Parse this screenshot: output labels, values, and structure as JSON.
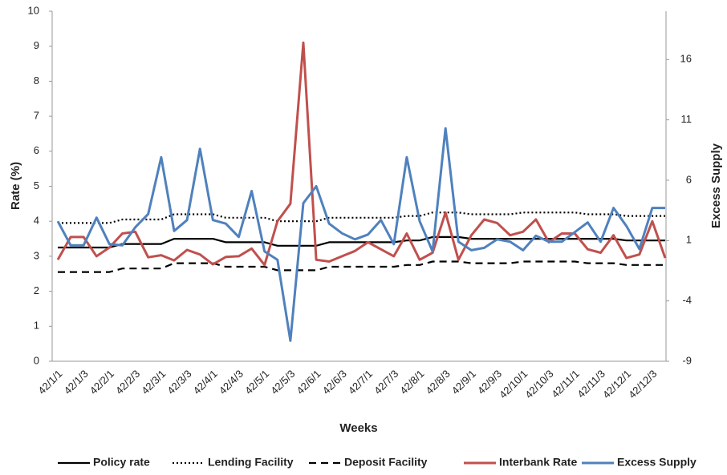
{
  "chart_data": {
    "type": "line",
    "ylabel": "Rate (%)",
    "y2label": "Excess Supply",
    "xlabel": "Weeks",
    "categories": [
      "42/1/1",
      null,
      "42/1/3",
      null,
      "42/2/1",
      null,
      "42/2/3",
      null,
      "42/3/1",
      null,
      "42/3/3",
      null,
      "42/4/1",
      null,
      "42/4/3",
      null,
      "42/5/1",
      null,
      "42/5/3",
      null,
      "42/6/1",
      null,
      "42/6/3",
      null,
      "42/7/1",
      null,
      "42/7/3",
      null,
      "42/8/1",
      null,
      "42/8/3",
      null,
      "42/9/1",
      null,
      "42/9/3",
      null,
      "42/10/1",
      null,
      "42/10/3",
      null,
      "42/11/1",
      null,
      "42/11/3",
      null,
      "42/12/1",
      null,
      "42/12/3",
      null
    ],
    "ylim": [
      0,
      10
    ],
    "yticks": [
      0,
      1,
      2,
      3,
      4,
      5,
      6,
      7,
      8,
      9,
      10
    ],
    "y2lim": [
      -9,
      20
    ],
    "y2ticks": [
      -9,
      -4,
      1,
      6,
      11,
      16
    ],
    "grid": false,
    "series": [
      {
        "name": "Policy rate",
        "color": "#000000",
        "dash": "solid",
        "values": [
          3.25,
          3.25,
          3.25,
          3.25,
          3.25,
          3.35,
          3.35,
          3.35,
          3.35,
          3.5,
          3.5,
          3.5,
          3.5,
          3.4,
          3.4,
          3.4,
          3.4,
          3.3,
          3.3,
          3.3,
          3.3,
          3.4,
          3.4,
          3.4,
          3.4,
          3.4,
          3.4,
          3.45,
          3.45,
          3.55,
          3.55,
          3.55,
          3.5,
          3.5,
          3.5,
          3.5,
          3.5,
          3.5,
          3.5,
          3.5,
          3.5,
          3.5,
          3.5,
          3.5,
          3.45,
          3.45,
          3.45,
          3.45
        ]
      },
      {
        "name": "Lending Facility",
        "color": "#000000",
        "dash": "dotted",
        "values": [
          3.95,
          3.95,
          3.95,
          3.95,
          3.95,
          4.05,
          4.05,
          4.05,
          4.05,
          4.2,
          4.2,
          4.2,
          4.2,
          4.1,
          4.1,
          4.1,
          4.1,
          4.0,
          4.0,
          4.0,
          4.0,
          4.1,
          4.1,
          4.1,
          4.1,
          4.1,
          4.1,
          4.15,
          4.15,
          4.25,
          4.25,
          4.25,
          4.2,
          4.2,
          4.2,
          4.2,
          4.25,
          4.25,
          4.25,
          4.25,
          4.25,
          4.2,
          4.2,
          4.2,
          4.15,
          4.15,
          4.15,
          4.15
        ]
      },
      {
        "name": "Deposit Facility",
        "color": "#000000",
        "dash": "dashed",
        "values": [
          2.55,
          2.55,
          2.55,
          2.55,
          2.55,
          2.65,
          2.65,
          2.65,
          2.65,
          2.8,
          2.8,
          2.8,
          2.8,
          2.7,
          2.7,
          2.7,
          2.7,
          2.6,
          2.6,
          2.6,
          2.6,
          2.7,
          2.7,
          2.7,
          2.7,
          2.7,
          2.7,
          2.75,
          2.75,
          2.85,
          2.85,
          2.85,
          2.8,
          2.8,
          2.8,
          2.8,
          2.85,
          2.85,
          2.85,
          2.85,
          2.85,
          2.8,
          2.8,
          2.8,
          2.75,
          2.75,
          2.75,
          2.75
        ]
      },
      {
        "name": "Interbank Rate",
        "color": "#c0504d",
        "dash": "solid",
        "values": [
          2.9,
          3.55,
          3.55,
          3.0,
          3.25,
          3.65,
          3.7,
          2.97,
          3.03,
          2.88,
          3.18,
          3.05,
          2.77,
          2.98,
          3.0,
          3.22,
          2.75,
          4.0,
          4.5,
          9.1,
          2.9,
          2.85,
          3.0,
          3.15,
          3.4,
          3.2,
          3.0,
          3.65,
          2.9,
          3.1,
          4.25,
          2.9,
          3.6,
          4.05,
          3.95,
          3.6,
          3.7,
          4.05,
          3.4,
          3.65,
          3.65,
          3.2,
          3.1,
          3.6,
          2.95,
          3.05,
          4.0,
          2.95
        ]
      },
      {
        "name": "Excess Supply",
        "color": "#4f81bd",
        "dash": "solid",
        "axis": "y2",
        "values": [
          2.6,
          0.6,
          0.6,
          2.9,
          0.7,
          0.6,
          2.1,
          3.2,
          7.9,
          1.8,
          2.7,
          8.6,
          2.7,
          2.4,
          1.3,
          5.1,
          0.1,
          -0.6,
          -7.3,
          4.1,
          5.5,
          2.4,
          1.6,
          1.1,
          1.5,
          2.7,
          0.7,
          7.9,
          2.6,
          0.1,
          10.3,
          0.9,
          0.2,
          0.4,
          1.1,
          0.9,
          0.2,
          1.4,
          0.9,
          0.9,
          1.7,
          2.5,
          0.9,
          3.7,
          2.2,
          0.3,
          3.7,
          3.7
        ]
      }
    ]
  }
}
